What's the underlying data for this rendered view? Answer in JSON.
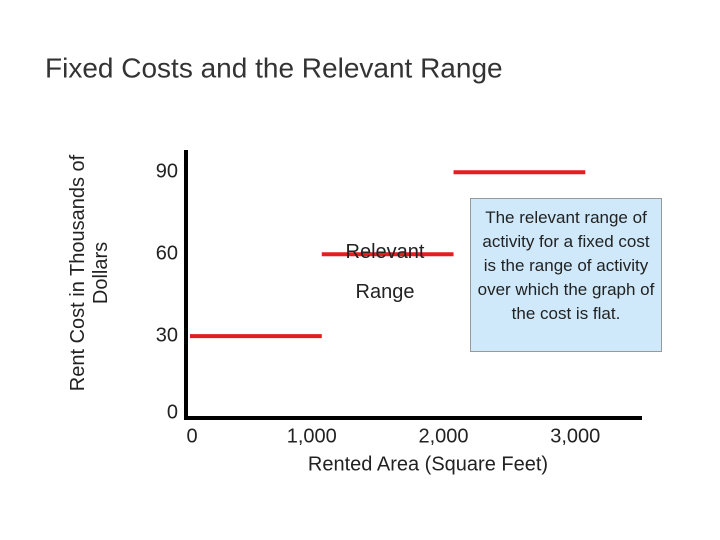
{
  "chart_data": {
    "type": "line",
    "title": "Fixed Costs and the Relevant Range",
    "xlabel": "Rented Area (Square Feet)",
    "ylabel": "Rent Cost in Thousands of Dollars",
    "x": [
      0,
      1000,
      1000,
      1000,
      2000,
      2000,
      2000,
      3000
    ],
    "series": [
      {
        "color": "#e31e1e",
        "values": [
          30,
          30,
          null,
          60,
          60,
          null,
          90,
          90
        ]
      }
    ],
    "xlim": [
      0,
      3400
    ],
    "ylim": [
      0,
      100
    ],
    "xticks": [
      0,
      {
        "value": 1000,
        "label": "1,000"
      },
      {
        "value": 2000,
        "label": "2,000"
      },
      {
        "value": 3000,
        "label": "3,000"
      }
    ],
    "yticks": [
      0,
      30,
      60,
      90
    ],
    "annotations": [
      "Relevant Range",
      "The relevant range of activity for a fixed cost is the range of activity over which the graph of the cost is flat."
    ]
  }
}
